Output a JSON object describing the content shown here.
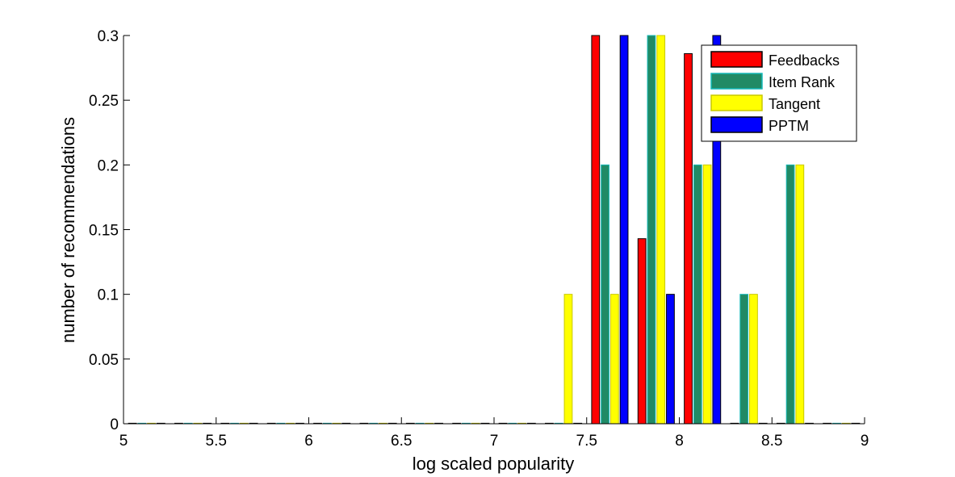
{
  "chart_data": {
    "type": "bar",
    "title": "",
    "xlabel": "log scaled popularity",
    "ylabel": "number of recommendations",
    "xlim": [
      5,
      9
    ],
    "ylim": [
      0,
      0.3
    ],
    "xticks": [
      "5",
      "5.5",
      "6",
      "6.5",
      "7",
      "7.5",
      "8",
      "8.5",
      "9"
    ],
    "yticks": [
      "0",
      "0.05",
      "0.1",
      "0.15",
      "0.2",
      "0.25",
      "0.3"
    ],
    "grid": false,
    "legend_position": "top-right",
    "bin_centers": [
      5.125,
      5.375,
      5.625,
      5.875,
      6.125,
      6.375,
      6.625,
      6.875,
      7.125,
      7.375,
      7.625,
      7.875,
      8.125,
      8.375,
      8.625,
      8.875
    ],
    "series": [
      {
        "name": "Feedbacks",
        "color": "#ff0000",
        "edge": "#000000",
        "values": [
          0,
          0,
          0,
          0,
          0,
          0,
          0,
          0,
          0,
          0,
          0.3,
          0.143,
          0.286,
          0,
          0,
          0
        ]
      },
      {
        "name": "Item Rank",
        "color": "#218a65",
        "edge": "#14b9b9",
        "values": [
          0,
          0,
          0,
          0,
          0,
          0,
          0,
          0,
          0,
          0,
          0.2,
          0.3,
          0.2,
          0.1,
          0.2,
          0
        ]
      },
      {
        "name": "Tangent",
        "color": "#ffff00",
        "edge": "#c8c800",
        "values": [
          0,
          0,
          0,
          0,
          0,
          0,
          0,
          0,
          0,
          0.1,
          0.1,
          0.3,
          0.2,
          0.1,
          0.2,
          0
        ]
      },
      {
        "name": "PPTM",
        "color": "#0000ff",
        "edge": "#000000",
        "values": [
          0,
          0,
          0,
          0,
          0,
          0,
          0,
          0,
          0,
          0,
          0.3,
          0.1,
          0.3,
          0,
          0,
          0
        ]
      }
    ]
  }
}
